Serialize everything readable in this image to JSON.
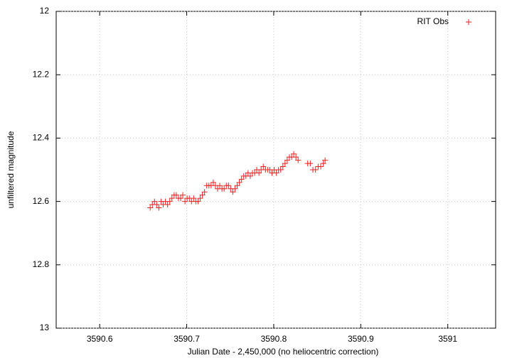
{
  "chart_data": {
    "type": "scatter",
    "xlabel": "Julian Date - 2,450,000 (no heliocentric correction)",
    "ylabel": "unfiltered magnitude",
    "xlim": [
      3590.55,
      3591.055
    ],
    "xticks": [
      3590.6,
      3590.7,
      3590.8,
      3590.9,
      3591
    ],
    "ylim": [
      13,
      12
    ],
    "yticks": [
      12,
      12.2,
      12.4,
      12.6,
      12.8,
      13
    ],
    "grid": true,
    "legend": "top-right",
    "series": [
      {
        "name": "RIT Obs",
        "color": "#ee2222",
        "x": [
          3590.658,
          3590.6605,
          3590.663,
          3590.6655,
          3590.668,
          3590.6705,
          3590.673,
          3590.6755,
          3590.678,
          3590.6805,
          3590.683,
          3590.6855,
          3590.688,
          3590.6905,
          3590.693,
          3590.6955,
          3590.698,
          3590.7005,
          3590.703,
          3590.7055,
          3590.708,
          3590.7105,
          3590.713,
          3590.7155,
          3590.718,
          3590.7205,
          3590.723,
          3590.7255,
          3590.728,
          3590.7305,
          3590.733,
          3590.7355,
          3590.738,
          3590.7405,
          3590.743,
          3590.7455,
          3590.748,
          3590.7505,
          3590.753,
          3590.7555,
          3590.758,
          3590.7605,
          3590.763,
          3590.7655,
          3590.768,
          3590.7705,
          3590.773,
          3590.7755,
          3590.778,
          3590.7805,
          3590.783,
          3590.7855,
          3590.788,
          3590.7905,
          3590.793,
          3590.7955,
          3590.798,
          3590.8005,
          3590.803,
          3590.8055,
          3590.808,
          3590.8105,
          3590.813,
          3590.8155,
          3590.818,
          3590.8205,
          3590.823,
          3590.8255,
          3590.828,
          3590.839,
          3590.842,
          3590.845,
          3590.848,
          3590.851,
          3590.854,
          3590.857,
          3590.859
        ],
        "values": [
          12.62,
          12.61,
          12.6,
          12.61,
          12.62,
          12.6,
          12.61,
          12.6,
          12.61,
          12.6,
          12.59,
          12.58,
          12.58,
          12.59,
          12.59,
          12.58,
          12.6,
          12.59,
          12.59,
          12.6,
          12.59,
          12.6,
          12.6,
          12.59,
          12.58,
          12.57,
          12.55,
          12.55,
          12.55,
          12.54,
          12.55,
          12.56,
          12.55,
          12.56,
          12.56,
          12.55,
          12.55,
          12.56,
          12.57,
          12.56,
          12.55,
          12.54,
          12.53,
          12.52,
          12.52,
          12.51,
          12.52,
          12.51,
          12.51,
          12.5,
          12.51,
          12.5,
          12.49,
          12.5,
          12.5,
          12.5,
          12.51,
          12.5,
          12.51,
          12.5,
          12.5,
          12.49,
          12.48,
          12.47,
          12.46,
          12.46,
          12.45,
          12.46,
          12.47,
          12.48,
          12.48,
          12.5,
          12.5,
          12.49,
          12.49,
          12.48,
          12.47
        ]
      }
    ]
  }
}
